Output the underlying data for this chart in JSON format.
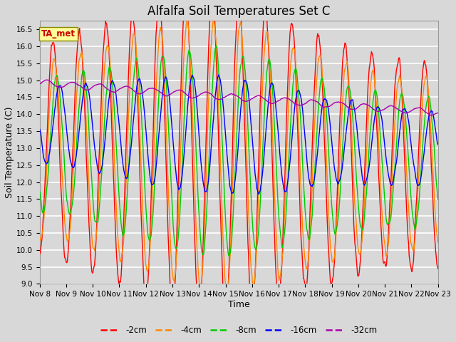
{
  "title": "Alfalfa Soil Temperatures Set C",
  "xlabel": "Time",
  "ylabel": "Soil Temperature (C)",
  "ylim": [
    9.0,
    16.75
  ],
  "yticks": [
    9.0,
    9.5,
    10.0,
    10.5,
    11.0,
    11.5,
    12.0,
    12.5,
    13.0,
    13.5,
    14.0,
    14.5,
    15.0,
    15.5,
    16.0,
    16.5
  ],
  "colors": {
    "-2cm": "#ff0000",
    "-4cm": "#ff8800",
    "-8cm": "#00cc00",
    "-16cm": "#0000ff",
    "-32cm": "#aa00aa"
  },
  "background_color": "#d8d8d8",
  "grid_color": "#ffffff",
  "ta_met_box_color": "#ffff99",
  "ta_met_text_color": "#cc0000",
  "ta_met_border_color": "#888800",
  "n_points": 720,
  "x_start": 8.0,
  "x_end": 23.0,
  "xtick_positions": [
    8,
    9,
    10,
    11,
    12,
    13,
    14,
    15,
    16,
    17,
    18,
    19,
    20,
    21,
    22,
    23
  ],
  "xtick_labels": [
    "Nov 8",
    "Nov 9",
    "Nov 10",
    "Nov 11",
    "Nov 12",
    "Nov 13",
    "Nov 14",
    "Nov 15",
    "Nov 16",
    "Nov 17",
    "Nov 18",
    "Nov 19",
    "Nov 20",
    "Nov 21",
    "Nov 22",
    "Nov 23"
  ],
  "legend_labels": [
    "-2cm",
    "-4cm",
    "-8cm",
    "-16cm",
    "-32cm"
  ],
  "linewidth": 1.0,
  "title_fontsize": 12,
  "axis_label_fontsize": 9,
  "tick_fontsize": 7.5
}
